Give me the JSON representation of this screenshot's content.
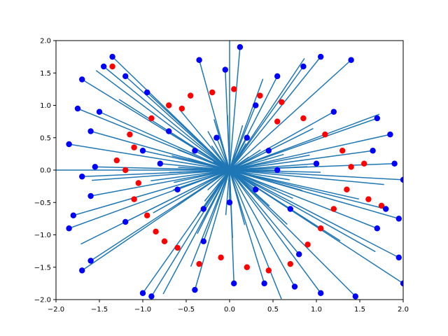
{
  "chart_data": {
    "type": "scatter",
    "title": "",
    "xlabel": "",
    "ylabel": "",
    "xlim": [
      -2.0,
      2.0
    ],
    "ylim": [
      -2.0,
      2.0
    ],
    "grid": false,
    "x_ticks": [
      "−2.0",
      "−1.5",
      "−1.0",
      "−0.5",
      "0.0",
      "0.5",
      "1.0",
      "1.5",
      "2.0"
    ],
    "y_ticks": [
      "−2.0",
      "−1.5",
      "−1.0",
      "−0.5",
      "0.0",
      "0.5",
      "1.0",
      "1.5",
      "2.0"
    ],
    "colors": {
      "red_points": "#ff0000",
      "blue_points": "#0000ff",
      "lines": "#1f77b4"
    },
    "red_points": [
      [
        -1.15,
        0.55
      ],
      [
        -1.1,
        0.35
      ],
      [
        -1.2,
        0.0
      ],
      [
        -1.05,
        -0.2
      ],
      [
        -1.1,
        -0.45
      ],
      [
        -0.95,
        -0.7
      ],
      [
        -0.85,
        -0.95
      ],
      [
        -0.6,
        -1.2
      ],
      [
        -0.35,
        -1.45
      ],
      [
        -0.1,
        -1.35
      ],
      [
        0.2,
        -1.5
      ],
      [
        0.45,
        -1.55
      ],
      [
        0.7,
        -1.45
      ],
      [
        0.9,
        -1.15
      ],
      [
        1.05,
        -0.9
      ],
      [
        1.2,
        -0.6
      ],
      [
        1.35,
        -0.3
      ],
      [
        1.4,
        0.05
      ],
      [
        1.3,
        0.3
      ],
      [
        1.1,
        0.55
      ],
      [
        0.85,
        0.8
      ],
      [
        0.6,
        1.05
      ],
      [
        0.35,
        1.15
      ],
      [
        0.05,
        1.25
      ],
      [
        -0.2,
        1.2
      ],
      [
        -0.45,
        1.15
      ],
      [
        -0.7,
        1.0
      ],
      [
        -0.9,
        0.8
      ],
      [
        -1.3,
        0.15
      ],
      [
        -0.75,
        -1.1
      ],
      [
        1.6,
        -0.45
      ],
      [
        1.75,
        -0.55
      ],
      [
        1.55,
        0.1
      ],
      [
        0.55,
        0.75
      ],
      [
        -0.55,
        0.95
      ],
      [
        -1.35,
        1.6
      ]
    ],
    "blue_points": [
      [
        -1.7,
        1.4
      ],
      [
        -1.45,
        1.6
      ],
      [
        -1.35,
        1.75
      ],
      [
        -1.2,
        1.45
      ],
      [
        -0.35,
        1.7
      ],
      [
        -0.05,
        1.55
      ],
      [
        0.12,
        1.9
      ],
      [
        0.55,
        1.45
      ],
      [
        0.85,
        1.6
      ],
      [
        1.05,
        1.75
      ],
      [
        1.4,
        1.7
      ],
      [
        1.7,
        0.8
      ],
      [
        1.85,
        0.55
      ],
      [
        1.65,
        0.3
      ],
      [
        1.9,
        0.1
      ],
      [
        2.0,
        -0.15
      ],
      [
        1.8,
        -0.6
      ],
      [
        1.95,
        -0.75
      ],
      [
        1.7,
        -0.9
      ],
      [
        1.95,
        -1.35
      ],
      [
        2.0,
        -1.75
      ],
      [
        1.45,
        -1.95
      ],
      [
        1.05,
        -1.9
      ],
      [
        0.75,
        -1.8
      ],
      [
        0.4,
        -1.75
      ],
      [
        0.05,
        -1.75
      ],
      [
        -0.4,
        -1.85
      ],
      [
        -0.9,
        -1.95
      ],
      [
        -1.0,
        -1.9
      ],
      [
        -1.7,
        -1.55
      ],
      [
        -1.6,
        -1.4
      ],
      [
        -1.85,
        -0.9
      ],
      [
        -1.8,
        -0.7
      ],
      [
        -1.6,
        -0.4
      ],
      [
        -1.7,
        -0.1
      ],
      [
        -1.55,
        0.05
      ],
      [
        -1.85,
        0.4
      ],
      [
        -1.6,
        0.6
      ],
      [
        -1.75,
        0.95
      ],
      [
        -1.5,
        0.9
      ],
      [
        -1.0,
        0.3
      ],
      [
        -0.8,
        0.1
      ],
      [
        -0.6,
        -0.3
      ],
      [
        -0.3,
        -0.6
      ],
      [
        0.0,
        -0.5
      ],
      [
        0.3,
        -0.3
      ],
      [
        0.55,
        0.0
      ],
      [
        0.45,
        0.3
      ],
      [
        0.2,
        0.5
      ],
      [
        -0.15,
        0.5
      ],
      [
        -0.4,
        0.3
      ],
      [
        0.7,
        -0.6
      ],
      [
        -0.7,
        0.6
      ],
      [
        1.0,
        0.1
      ],
      [
        -1.2,
        -0.8
      ],
      [
        1.2,
        0.9
      ],
      [
        0.3,
        1.0
      ],
      [
        -0.3,
        -1.1
      ],
      [
        0.8,
        -1.3
      ],
      [
        -0.95,
        1.2
      ]
    ]
  }
}
